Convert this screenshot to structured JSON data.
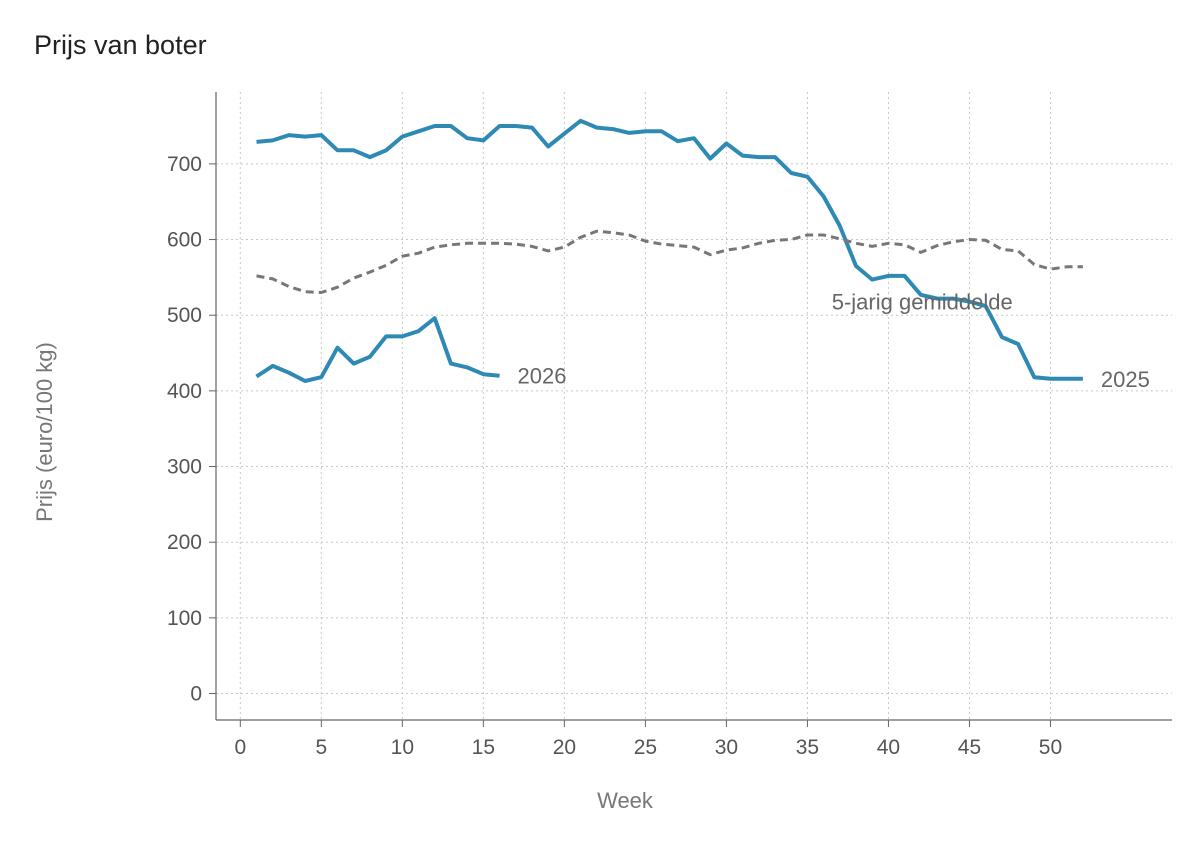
{
  "title": "Prijs van boter",
  "chart_data": {
    "type": "line",
    "title": "Prijs van boter",
    "xlabel": "Week",
    "ylabel": "Prijs (euro/100 kg)",
    "xlim": [
      -1.5,
      57.5
    ],
    "ylim": [
      -35,
      795
    ],
    "xticks": [
      0,
      5,
      10,
      15,
      20,
      25,
      30,
      35,
      40,
      45,
      50
    ],
    "yticks": [
      0,
      100,
      200,
      300,
      400,
      500,
      600,
      700
    ],
    "grid": true,
    "colors": {
      "blue": "#2e8ab5",
      "grey": "#777777"
    },
    "series": [
      {
        "name": "2025",
        "color": "#2e8ab5",
        "style": "solid",
        "x": [
          1,
          2,
          3,
          4,
          5,
          6,
          7,
          8,
          9,
          10,
          11,
          12,
          13,
          14,
          15,
          16,
          17,
          18,
          19,
          20,
          21,
          22,
          23,
          24,
          25,
          26,
          27,
          28,
          29,
          30,
          31,
          32,
          33,
          34,
          35,
          36,
          37,
          38,
          39,
          40,
          41,
          42,
          43,
          44,
          45,
          46,
          47,
          48,
          49,
          50,
          51,
          52
        ],
        "y": [
          729,
          731,
          738,
          736,
          738,
          718,
          718,
          709,
          718,
          736,
          743,
          750,
          750,
          734,
          731,
          750,
          750,
          748,
          723,
          740,
          757,
          748,
          746,
          741,
          743,
          743,
          730,
          734,
          707,
          727,
          711,
          709,
          709,
          688,
          683,
          657,
          618,
          565,
          547,
          552,
          552,
          527,
          522,
          522,
          518,
          512,
          471,
          462,
          418,
          416,
          416,
          416
        ]
      },
      {
        "name": "2026",
        "color": "#2e8ab5",
        "style": "solid",
        "x": [
          1,
          2,
          3,
          4,
          5,
          6,
          7,
          8,
          9,
          10,
          11,
          12,
          13,
          14,
          15,
          16
        ],
        "y": [
          419,
          433,
          424,
          413,
          418,
          457,
          436,
          445,
          472,
          472,
          479,
          496,
          436,
          431,
          422,
          420
        ]
      },
      {
        "name": "5-jarig gemiddelde",
        "color": "#777777",
        "style": "dashed",
        "x": [
          1,
          2,
          3,
          4,
          5,
          6,
          7,
          8,
          9,
          10,
          11,
          12,
          13,
          14,
          15,
          16,
          17,
          18,
          19,
          20,
          21,
          22,
          23,
          24,
          25,
          26,
          27,
          28,
          29,
          30,
          31,
          32,
          33,
          34,
          35,
          36,
          37,
          38,
          39,
          40,
          41,
          42,
          43,
          44,
          45,
          46,
          47,
          48,
          49,
          50,
          51,
          52
        ],
        "y": [
          552,
          548,
          538,
          531,
          530,
          537,
          549,
          557,
          566,
          578,
          582,
          590,
          593,
          595,
          595,
          595,
          594,
          591,
          585,
          590,
          603,
          611,
          609,
          606,
          598,
          594,
          592,
          590,
          580,
          586,
          589,
          595,
          599,
          600,
          606,
          606,
          601,
          595,
          591,
          595,
          593,
          583,
          592,
          597,
          600,
          599,
          587,
          585,
          567,
          561,
          564,
          564
        ]
      }
    ]
  }
}
